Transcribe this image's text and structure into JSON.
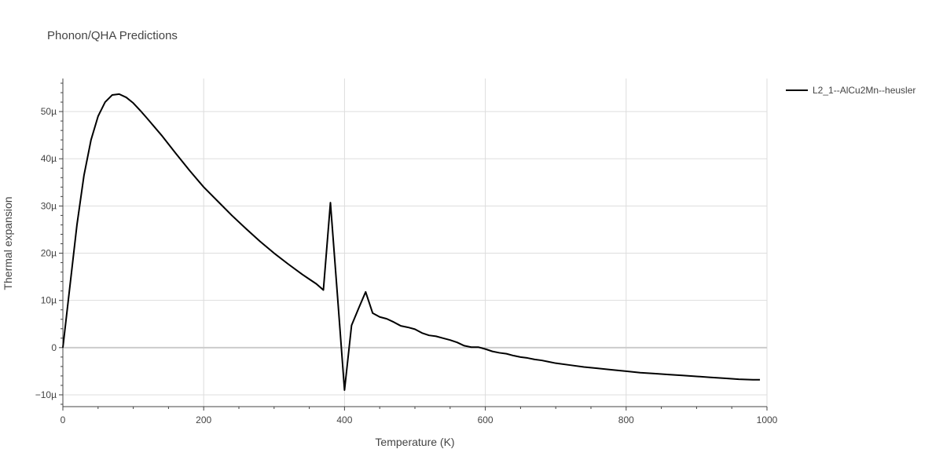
{
  "chart_data": {
    "type": "line",
    "title": "Phonon/QHA Predictions",
    "xlabel": "Temperature (K)",
    "ylabel": "Thermal expansion",
    "xlim": [
      0,
      1000
    ],
    "ylim": [
      -1.25e-05,
      5.7e-05
    ],
    "grid": true,
    "legend_position": "right",
    "x_ticks": [
      {
        "value": 0,
        "label": "0"
      },
      {
        "value": 200,
        "label": "200"
      },
      {
        "value": 400,
        "label": "400"
      },
      {
        "value": 600,
        "label": "600"
      },
      {
        "value": 800,
        "label": "800"
      },
      {
        "value": 1000,
        "label": "1000"
      }
    ],
    "y_ticks": [
      {
        "value": -1e-05,
        "label": "−10µ"
      },
      {
        "value": 0,
        "label": "0"
      },
      {
        "value": 1e-05,
        "label": "10µ"
      },
      {
        "value": 2e-05,
        "label": "20µ"
      },
      {
        "value": 3e-05,
        "label": "30µ"
      },
      {
        "value": 4e-05,
        "label": "40µ"
      },
      {
        "value": 5e-05,
        "label": "50µ"
      }
    ],
    "series": [
      {
        "name": "L2_1--AlCu2Mn--heusler",
        "color": "#000000",
        "x": [
          0,
          10,
          20,
          30,
          40,
          50,
          60,
          70,
          80,
          90,
          100,
          110,
          120,
          140,
          160,
          180,
          200,
          220,
          240,
          260,
          280,
          300,
          320,
          340,
          350,
          360,
          370,
          380,
          390,
          400,
          410,
          420,
          430,
          440,
          450,
          460,
          470,
          480,
          490,
          500,
          510,
          520,
          530,
          540,
          550,
          560,
          570,
          580,
          590,
          600,
          610,
          620,
          630,
          640,
          650,
          660,
          670,
          680,
          690,
          700,
          720,
          740,
          760,
          780,
          800,
          820,
          840,
          860,
          880,
          900,
          920,
          940,
          960,
          980,
          990
        ],
        "y": [
          0,
          1.3e-05,
          2.6e-05,
          3.65e-05,
          4.4e-05,
          4.9e-05,
          5.2e-05,
          5.35e-05,
          5.37e-05,
          5.3e-05,
          5.18e-05,
          5.02e-05,
          4.85e-05,
          4.5e-05,
          4.12e-05,
          3.75e-05,
          3.4e-05,
          3.1e-05,
          2.8e-05,
          2.52e-05,
          2.25e-05,
          2e-05,
          1.77e-05,
          1.55e-05,
          1.45e-05,
          1.35e-05,
          1.22e-05,
          3.07e-05,
          1.1e-05,
          -9e-06,
          4.7e-06,
          8.3e-06,
          1.18e-05,
          7.3e-06,
          6.5e-06,
          6.1e-06,
          5.4e-06,
          4.6e-06,
          4.3e-06,
          3.9e-06,
          3.1e-06,
          2.6e-06,
          2.4e-06,
          2e-06,
          1.6e-06,
          1.1e-06,
          4e-07,
          1e-07,
          1e-07,
          -3e-07,
          -8e-07,
          -1.1e-06,
          -1.3e-06,
          -1.7e-06,
          -2e-06,
          -2.2e-06,
          -2.5e-06,
          -2.7e-06,
          -3e-06,
          -3.3e-06,
          -3.7e-06,
          -4.1e-06,
          -4.4e-06,
          -4.7e-06,
          -5e-06,
          -5.3e-06,
          -5.5e-06,
          -5.7e-06,
          -5.9e-06,
          -6.1e-06,
          -6.3e-06,
          -6.5e-06,
          -6.7e-06,
          -6.8e-06,
          -6.8e-06
        ]
      }
    ]
  }
}
